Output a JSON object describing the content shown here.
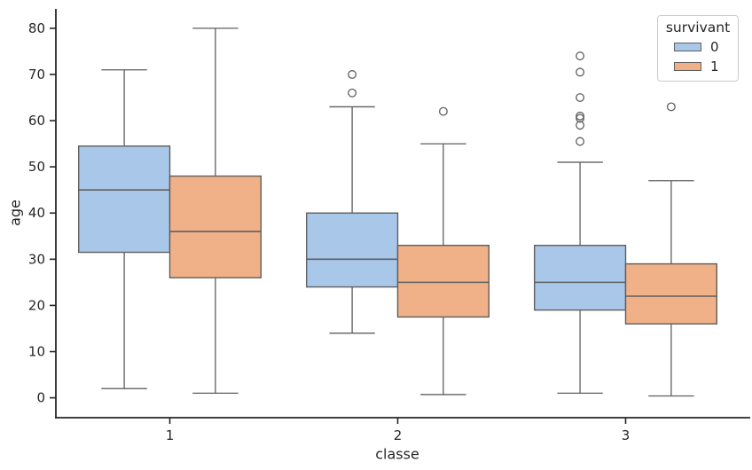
{
  "chart_data": {
    "type": "box",
    "title": "",
    "xlabel": "classe",
    "ylabel": "age",
    "categories": [
      "1",
      "2",
      "3"
    ],
    "y_ticks": [
      0,
      10,
      20,
      30,
      40,
      50,
      60,
      70,
      80
    ],
    "ylim": [
      -4.3,
      84.2
    ],
    "grid": false,
    "legend": {
      "title": "survivant",
      "position": "upper right"
    },
    "colors": {
      "box_edge": "#5f5f5f",
      "spine": "#262626",
      "tick_text": "#262626",
      "flier_fill": "none"
    },
    "series": [
      {
        "name": "0",
        "color": "#a9c7e8",
        "boxes": [
          {
            "category": "1",
            "whisker_low": 2,
            "q1": 31.5,
            "median": 45,
            "q3": 54.5,
            "whisker_high": 71,
            "outliers": []
          },
          {
            "category": "2",
            "whisker_low": 14,
            "q1": 24,
            "median": 30,
            "q3": 40,
            "whisker_high": 63,
            "outliers": [
              66,
              70
            ]
          },
          {
            "category": "3",
            "whisker_low": 1,
            "q1": 19,
            "median": 25,
            "q3": 33,
            "whisker_high": 51,
            "outliers": [
              55.5,
              59,
              60.5,
              61,
              65,
              70.5,
              74
            ]
          }
        ]
      },
      {
        "name": "1",
        "color": "#f0b189",
        "boxes": [
          {
            "category": "1",
            "whisker_low": 1,
            "q1": 26,
            "median": 36,
            "q3": 48,
            "whisker_high": 80,
            "outliers": []
          },
          {
            "category": "2",
            "whisker_low": 0.7,
            "q1": 17.5,
            "median": 25,
            "q3": 33,
            "whisker_high": 55,
            "outliers": [
              62
            ]
          },
          {
            "category": "3",
            "whisker_low": 0.4,
            "q1": 16,
            "median": 22,
            "q3": 29,
            "whisker_high": 47,
            "outliers": [
              63
            ]
          }
        ]
      }
    ]
  }
}
